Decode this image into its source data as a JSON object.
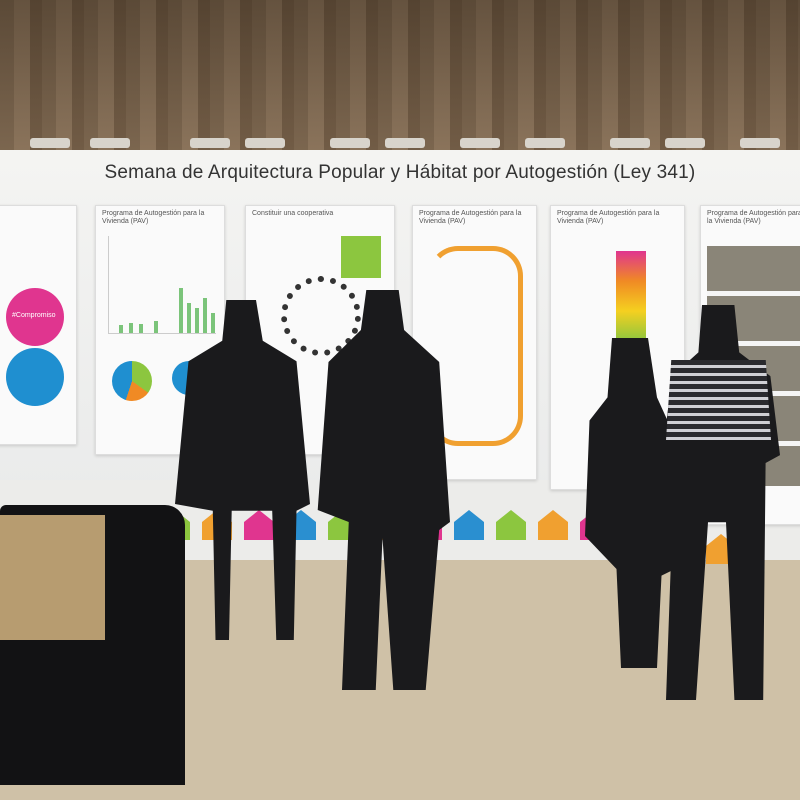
{
  "banner": {
    "title": "Semana de Arquitectura Popular y Hábitat por Autogestión (Ley 341)",
    "panels": [
      {
        "heading": ""
      },
      {
        "heading": "Programa de Autogestión para la Vivienda (PAV)"
      },
      {
        "heading": "Constituir una cooperativa"
      },
      {
        "heading": "Programa de Autogestión para la Vivienda (PAV)"
      },
      {
        "heading": "Programa de Autogestión para la Vivienda (PAV)"
      },
      {
        "heading": "Programa de Autogestión para la Vivienda (PAV)"
      }
    ],
    "circle_label": "#Compromiso"
  },
  "colors": {
    "magenta": "#e0358f",
    "blue": "#1f8fd0",
    "green": "#8cc63f",
    "orange": "#f08a24",
    "curtain": "#7a6650"
  },
  "houses": [
    "#8cc63f",
    "#f0a030",
    "#e0358f",
    "#2a8fd0",
    "#8cc63f",
    "#f0a030",
    "#e0358f",
    "#2a8fd0",
    "#8cc63f",
    "#f0a030",
    "#e0358f",
    "#2a8fd0",
    "#8cc63f",
    "#f0a030"
  ]
}
